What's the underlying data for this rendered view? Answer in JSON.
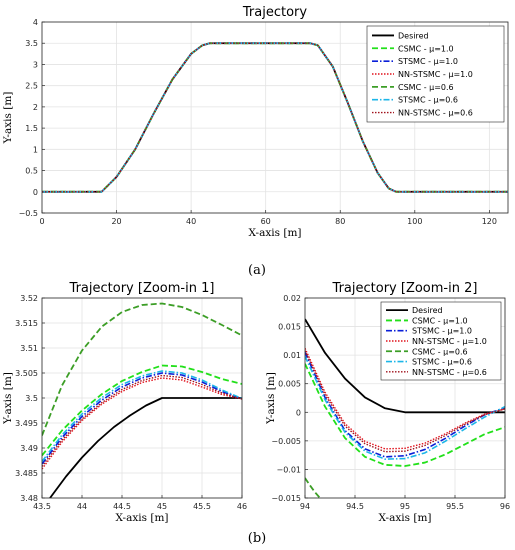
{
  "captions": {
    "a": "(a)",
    "b": "(b)"
  },
  "chart_data": [
    {
      "type": "line",
      "title": "Trajectory",
      "xlabel": "X-axis [m]",
      "ylabel": "Y-axis [m]",
      "xlim": [
        0,
        125
      ],
      "ylim": [
        -0.5,
        4
      ],
      "xticks": [
        0,
        20,
        40,
        60,
        80,
        100,
        120
      ],
      "yticks": [
        -0.5,
        0,
        0.5,
        1,
        1.5,
        2,
        2.5,
        3,
        3.5,
        4
      ],
      "grid": true,
      "legend_position": "top-right",
      "series": [
        {
          "name": "Desired",
          "color": "#000000",
          "dash": "solid",
          "x": [
            0,
            16,
            20,
            25,
            30,
            35,
            40,
            43,
            45,
            72,
            74,
            78,
            82,
            86,
            90,
            93,
            95,
            125
          ],
          "y": [
            0,
            0,
            0.35,
            1.0,
            1.85,
            2.65,
            3.25,
            3.45,
            3.5,
            3.5,
            3.45,
            2.95,
            2.1,
            1.2,
            0.45,
            0.08,
            0,
            0
          ]
        },
        {
          "name": "CSMC - μ=1.0",
          "color": "#22e01a",
          "dash": "dashed",
          "x": [
            0,
            16,
            20,
            25,
            30,
            35,
            40,
            43,
            45,
            72,
            74,
            78,
            82,
            86,
            90,
            93,
            95,
            125
          ],
          "y": [
            0,
            0,
            0.35,
            1.0,
            1.85,
            2.65,
            3.25,
            3.45,
            3.5,
            3.5,
            3.45,
            2.95,
            2.1,
            1.2,
            0.45,
            0.08,
            0,
            0
          ]
        },
        {
          "name": "STSMC - μ=1.0",
          "color": "#0a1fd8",
          "dash": "dashdot",
          "x": [
            0,
            16,
            20,
            25,
            30,
            35,
            40,
            43,
            45,
            72,
            74,
            78,
            82,
            86,
            90,
            93,
            95,
            125
          ],
          "y": [
            0,
            0,
            0.35,
            1.0,
            1.85,
            2.65,
            3.25,
            3.45,
            3.5,
            3.5,
            3.45,
            2.95,
            2.1,
            1.2,
            0.45,
            0.08,
            0,
            0
          ]
        },
        {
          "name": "NN-STSMC - μ=1.0",
          "color": "#e0121c",
          "dash": "dotted",
          "x": [
            0,
            16,
            20,
            25,
            30,
            35,
            40,
            43,
            45,
            72,
            74,
            78,
            82,
            86,
            90,
            93,
            95,
            125
          ],
          "y": [
            0,
            0,
            0.35,
            1.0,
            1.85,
            2.65,
            3.25,
            3.45,
            3.5,
            3.5,
            3.45,
            2.95,
            2.1,
            1.2,
            0.45,
            0.08,
            0,
            0
          ]
        },
        {
          "name": "CSMC - μ=0.6",
          "color": "#3c9e26",
          "dash": "dashed",
          "x": [
            0,
            16,
            20,
            25,
            30,
            35,
            40,
            43,
            45,
            72,
            74,
            78,
            82,
            86,
            90,
            93,
            95,
            125
          ],
          "y": [
            0,
            0,
            0.35,
            1.0,
            1.85,
            2.65,
            3.25,
            3.45,
            3.5,
            3.5,
            3.45,
            2.95,
            2.1,
            1.2,
            0.45,
            0.08,
            0,
            0
          ]
        },
        {
          "name": "STSMC - μ=0.6",
          "color": "#1cb6e8",
          "dash": "dashdot",
          "x": [
            0,
            16,
            20,
            25,
            30,
            35,
            40,
            43,
            45,
            72,
            74,
            78,
            82,
            86,
            90,
            93,
            95,
            125
          ],
          "y": [
            0,
            0,
            0.35,
            1.0,
            1.85,
            2.65,
            3.25,
            3.45,
            3.5,
            3.5,
            3.45,
            2.95,
            2.1,
            1.2,
            0.45,
            0.08,
            0,
            0
          ]
        },
        {
          "name": "NN-STSMC - μ=0.6",
          "color": "#a0121c",
          "dash": "dotted",
          "x": [
            0,
            16,
            20,
            25,
            30,
            35,
            40,
            43,
            45,
            72,
            74,
            78,
            82,
            86,
            90,
            93,
            95,
            125
          ],
          "y": [
            0,
            0,
            0.35,
            1.0,
            1.85,
            2.65,
            3.25,
            3.45,
            3.5,
            3.5,
            3.45,
            2.95,
            2.1,
            1.2,
            0.45,
            0.08,
            0,
            0
          ]
        }
      ]
    },
    {
      "type": "line",
      "title": "Trajectory [Zoom-in 1]",
      "xlabel": "X-axis [m]",
      "ylabel": "Y-axis [m]",
      "xlim": [
        43.5,
        46
      ],
      "ylim": [
        3.48,
        3.52
      ],
      "xticks": [
        43.5,
        44,
        44.5,
        45,
        45.5,
        46
      ],
      "yticks": [
        3.48,
        3.485,
        3.49,
        3.495,
        3.5,
        3.505,
        3.51,
        3.515,
        3.52
      ],
      "grid": true,
      "series": [
        {
          "name": "Desired",
          "color": "#000000",
          "dash": "solid",
          "x": [
            43.6,
            43.8,
            44.0,
            44.2,
            44.4,
            44.6,
            44.8,
            45.0,
            46.0
          ],
          "y": [
            3.48,
            3.4843,
            3.4881,
            3.4914,
            3.4942,
            3.4965,
            3.4985,
            3.5,
            3.5
          ]
        },
        {
          "name": "CSMC - μ=1.0",
          "color": "#22e01a",
          "dash": "dashed",
          "x": [
            43.5,
            43.75,
            44.0,
            44.25,
            44.5,
            44.75,
            45.0,
            45.25,
            45.5,
            45.75,
            46.0
          ],
          "y": [
            3.4885,
            3.4935,
            3.4975,
            3.5008,
            3.5034,
            3.5052,
            3.5065,
            3.5063,
            3.5052,
            3.5038,
            3.5028
          ]
        },
        {
          "name": "STSMC - μ=1.0",
          "color": "#0a1fd8",
          "dash": "dashdot",
          "x": [
            43.5,
            43.75,
            44.0,
            44.25,
            44.5,
            44.75,
            45.0,
            45.25,
            45.5,
            45.75,
            46.0
          ],
          "y": [
            3.4868,
            3.4921,
            3.4963,
            3.4996,
            3.5022,
            3.504,
            3.505,
            3.5046,
            3.5032,
            3.5013,
            3.4998
          ]
        },
        {
          "name": "NN-STSMC - μ=1.0",
          "color": "#e0121c",
          "dash": "dotted",
          "x": [
            43.5,
            43.75,
            44.0,
            44.25,
            44.5,
            44.75,
            45.0,
            45.25,
            45.5,
            45.75,
            46.0
          ],
          "y": [
            3.4858,
            3.4912,
            3.4955,
            3.4988,
            3.5013,
            3.5031,
            3.504,
            3.5036,
            3.5022,
            3.5007,
            3.4998
          ]
        },
        {
          "name": "CSMC - μ=0.6",
          "color": "#3c9e26",
          "dash": "dashed",
          "x": [
            43.5,
            43.75,
            44.0,
            44.25,
            44.5,
            44.75,
            45.0,
            45.25,
            45.5,
            45.75,
            46.0
          ],
          "y": [
            3.4925,
            3.5025,
            3.5095,
            3.5143,
            3.5172,
            3.5186,
            3.5189,
            3.5182,
            3.5166,
            3.5146,
            3.5125
          ]
        },
        {
          "name": "STSMC - μ=0.6",
          "color": "#1cb6e8",
          "dash": "dashdot",
          "x": [
            43.5,
            43.75,
            44.0,
            44.25,
            44.5,
            44.75,
            45.0,
            45.25,
            45.5,
            45.75,
            46.0
          ],
          "y": [
            3.4873,
            3.4926,
            3.4968,
            3.5001,
            3.5027,
            3.5044,
            3.5054,
            3.505,
            3.5036,
            3.5016,
            3.4999
          ]
        },
        {
          "name": "NN-STSMC - μ=0.6",
          "color": "#a0121c",
          "dash": "dotted",
          "x": [
            43.5,
            43.75,
            44.0,
            44.25,
            44.5,
            44.75,
            45.0,
            45.25,
            45.5,
            45.75,
            46.0
          ],
          "y": [
            3.4863,
            3.4916,
            3.4958,
            3.4991,
            3.5017,
            3.5035,
            3.5045,
            3.5041,
            3.5027,
            3.501,
            3.4998
          ]
        }
      ]
    },
    {
      "type": "line",
      "title": "Trajectory [Zoom-in 2]",
      "xlabel": "X-axis [m]",
      "ylabel": "Y-axis [m]",
      "xlim": [
        94,
        96
      ],
      "ylim": [
        -0.015,
        0.02
      ],
      "xticks": [
        94,
        94.5,
        95,
        95.5,
        96
      ],
      "yticks": [
        -0.015,
        -0.01,
        -0.005,
        0,
        0.005,
        0.01,
        0.015,
        0.02
      ],
      "grid": true,
      "legend_position": "top-right",
      "series": [
        {
          "name": "Desired",
          "color": "#000000",
          "dash": "solid",
          "x": [
            94.0,
            94.2,
            94.4,
            94.6,
            94.8,
            95.0,
            96.0
          ],
          "y": [
            0.0163,
            0.0104,
            0.0059,
            0.0026,
            0.0007,
            0.0,
            0.0
          ]
        },
        {
          "name": "CSMC - μ=1.0",
          "color": "#22e01a",
          "dash": "dashed",
          "x": [
            94.0,
            94.2,
            94.4,
            94.6,
            94.8,
            95.0,
            95.2,
            95.4,
            95.6,
            95.8,
            96.0
          ],
          "y": [
            0.0085,
            0.001,
            -0.0045,
            -0.0078,
            -0.0092,
            -0.0094,
            -0.0088,
            -0.0074,
            -0.0056,
            -0.0038,
            -0.0026
          ]
        },
        {
          "name": "STSMC - μ=1.0",
          "color": "#0a1fd8",
          "dash": "dashdot",
          "x": [
            94.0,
            94.2,
            94.4,
            94.6,
            94.8,
            95.0,
            95.2,
            95.4,
            95.6,
            95.8,
            96.0
          ],
          "y": [
            0.0105,
            0.0026,
            -0.0032,
            -0.0064,
            -0.0078,
            -0.0076,
            -0.0065,
            -0.0046,
            -0.0024,
            -0.0004,
            0.0008
          ]
        },
        {
          "name": "NN-STSMC - μ=1.0",
          "color": "#e0121c",
          "dash": "dotted",
          "x": [
            94.0,
            94.2,
            94.4,
            94.6,
            94.8,
            95.0,
            95.2,
            95.4,
            95.6,
            95.8,
            96.0
          ],
          "y": [
            0.0112,
            0.0035,
            -0.002,
            -0.0051,
            -0.0064,
            -0.0063,
            -0.0054,
            -0.0038,
            -0.0019,
            -0.0003,
            0.0006
          ]
        },
        {
          "name": "CSMC - μ=0.6",
          "color": "#3c9e26",
          "dash": "dashed",
          "x": [
            94.0,
            94.05,
            94.1,
            94.15
          ],
          "y": [
            -0.0115,
            -0.0128,
            -0.014,
            -0.015
          ]
        },
        {
          "name": "STSMC - μ=0.6",
          "color": "#1cb6e8",
          "dash": "dashdot",
          "x": [
            94.0,
            94.2,
            94.4,
            94.6,
            94.8,
            95.0,
            95.2,
            95.4,
            95.6,
            95.8,
            96.0
          ],
          "y": [
            0.0098,
            0.0022,
            -0.0035,
            -0.0068,
            -0.0082,
            -0.0081,
            -0.0071,
            -0.0051,
            -0.0029,
            -0.0008,
            0.001
          ]
        },
        {
          "name": "NN-STSMC - μ=0.6",
          "color": "#a0121c",
          "dash": "dotted",
          "x": [
            94.0,
            94.2,
            94.4,
            94.6,
            94.8,
            95.0,
            95.2,
            95.4,
            95.6,
            95.8,
            96.0
          ],
          "y": [
            0.0108,
            0.0031,
            -0.0024,
            -0.0055,
            -0.0069,
            -0.0068,
            -0.0058,
            -0.0041,
            -0.0021,
            -0.0004,
            0.0006
          ]
        }
      ]
    }
  ]
}
